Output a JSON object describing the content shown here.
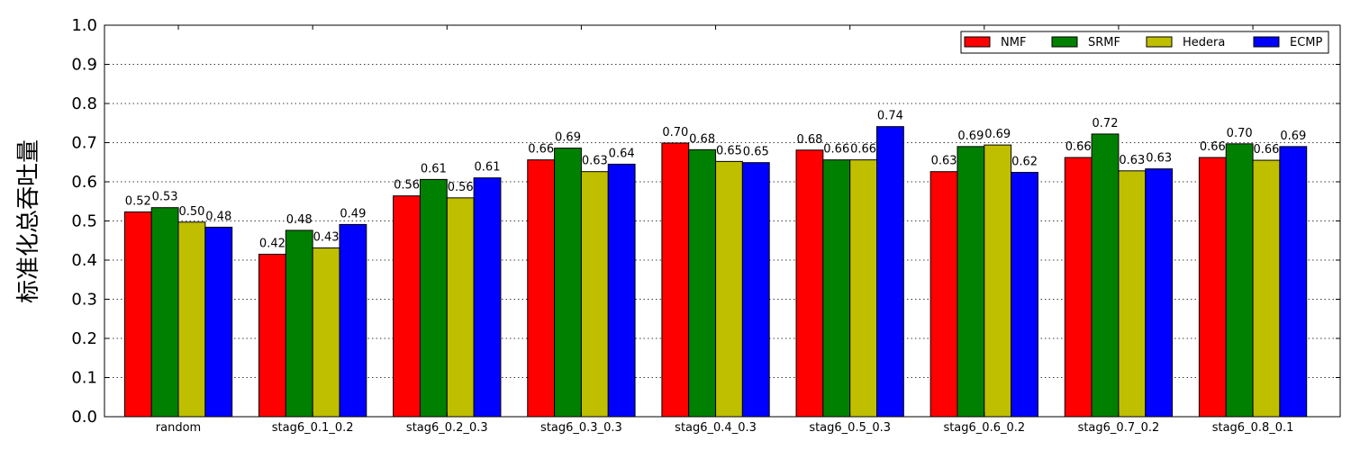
{
  "chart_data": {
    "type": "bar",
    "title": "",
    "xlabel": "",
    "ylabel": "标准化总吞吐量",
    "ylim": [
      0.0,
      1.0
    ],
    "yticks": [
      "0.0",
      "0.1",
      "0.2",
      "0.3",
      "0.4",
      "0.5",
      "0.6",
      "0.7",
      "0.8",
      "0.9",
      "1.0"
    ],
    "grid": "horizontal dotted",
    "legend_position": "top-right",
    "categories": [
      "random",
      "stag6_0.1_0.2",
      "stag6_0.2_0.3",
      "stag6_0.3_0.3",
      "stag6_0.4_0.3",
      "stag6_0.5_0.3",
      "stag6_0.6_0.2",
      "stag6_0.7_0.2",
      "stag6_0.8_0.1"
    ],
    "series": [
      {
        "name": "NMF",
        "color": "#ff0000",
        "values": [
          0.523,
          0.415,
          0.564,
          0.656,
          0.699,
          0.681,
          0.626,
          0.662,
          0.662
        ],
        "labels": [
          "0.52",
          "0.42",
          "0.56",
          "0.66",
          "0.70",
          "0.68",
          "0.63",
          "0.66",
          "0.66"
        ]
      },
      {
        "name": "SRMF",
        "color": "#008000",
        "values": [
          0.534,
          0.476,
          0.606,
          0.686,
          0.682,
          0.656,
          0.69,
          0.722,
          0.697
        ],
        "labels": [
          "0.53",
          "0.48",
          "0.61",
          "0.69",
          "0.68",
          "0.66",
          "0.69",
          "0.72",
          "0.70"
        ]
      },
      {
        "name": "Hedera",
        "color": "#bfbf00",
        "values": [
          0.497,
          0.431,
          0.559,
          0.626,
          0.652,
          0.656,
          0.694,
          0.628,
          0.655
        ],
        "labels": [
          "0.50",
          "0.43",
          "0.56",
          "0.63",
          "0.65",
          "0.66",
          "0.69",
          "0.63",
          "0.66"
        ]
      },
      {
        "name": "ECMP",
        "color": "#0000ff",
        "values": [
          0.484,
          0.491,
          0.61,
          0.645,
          0.649,
          0.741,
          0.624,
          0.633,
          0.69
        ],
        "labels": [
          "0.48",
          "0.49",
          "0.61",
          "0.64",
          "0.65",
          "0.74",
          "0.62",
          "0.63",
          "0.69"
        ]
      }
    ]
  }
}
